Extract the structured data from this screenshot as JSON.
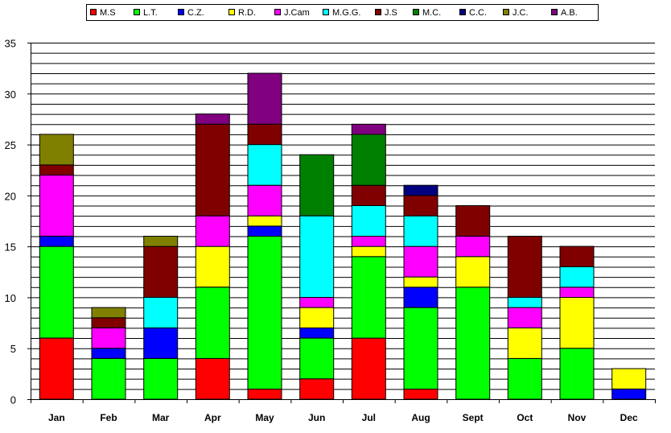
{
  "chart_data": {
    "type": "bar",
    "stacked": true,
    "categories": [
      "Jan",
      "Feb",
      "Mar",
      "Apr",
      "May",
      "Jun",
      "Jul",
      "Aug",
      "Sept",
      "Oct",
      "Nov",
      "Dec"
    ],
    "ylim": [
      0,
      35
    ],
    "yticks": [
      0,
      5,
      10,
      15,
      20,
      25,
      30,
      35
    ],
    "grid": true,
    "legend_position": "top",
    "series": [
      {
        "name": "M.S",
        "color": "#ff0000",
        "values": [
          6,
          0,
          0,
          4,
          1,
          2,
          6,
          1,
          0,
          0,
          0,
          0
        ]
      },
      {
        "name": "L.T.",
        "color": "#00ff00",
        "values": [
          9,
          4,
          4,
          7,
          15,
          4,
          8,
          8,
          11,
          4,
          5,
          0
        ]
      },
      {
        "name": "C.Z.",
        "color": "#0000ff",
        "values": [
          1,
          1,
          3,
          0,
          1,
          1,
          0,
          2,
          0,
          0,
          0,
          1
        ]
      },
      {
        "name": "R.D.",
        "color": "#ffff00",
        "values": [
          0,
          0,
          0,
          4,
          1,
          2,
          1,
          1,
          3,
          3,
          5,
          2
        ]
      },
      {
        "name": "J.Cam",
        "color": "#ff00ff",
        "values": [
          6,
          2,
          0,
          3,
          3,
          1,
          1,
          3,
          2,
          2,
          1,
          0
        ]
      },
      {
        "name": "M.G.G.",
        "color": "#00ffff",
        "values": [
          0,
          0,
          3,
          0,
          4,
          8,
          3,
          3,
          0,
          1,
          2,
          0
        ]
      },
      {
        "name": "J.S",
        "color": "#800000",
        "values": [
          1,
          1,
          5,
          9,
          2,
          0,
          2,
          2,
          3,
          6,
          2,
          0
        ]
      },
      {
        "name": "M.C.",
        "color": "#008000",
        "values": [
          0,
          0,
          0,
          0,
          0,
          6,
          5,
          0,
          0,
          0,
          0,
          0
        ]
      },
      {
        "name": "C.C.",
        "color": "#000080",
        "values": [
          0,
          0,
          0,
          0,
          0,
          0,
          0,
          1,
          0,
          0,
          0,
          0
        ]
      },
      {
        "name": "J.C.",
        "color": "#808000",
        "values": [
          3,
          1,
          1,
          0,
          0,
          0,
          0,
          0,
          0,
          0,
          0,
          0
        ]
      },
      {
        "name": "A.B.",
        "color": "#800080",
        "values": [
          0,
          0,
          0,
          1,
          5,
          0,
          1,
          0,
          0,
          0,
          0,
          0
        ]
      }
    ]
  }
}
